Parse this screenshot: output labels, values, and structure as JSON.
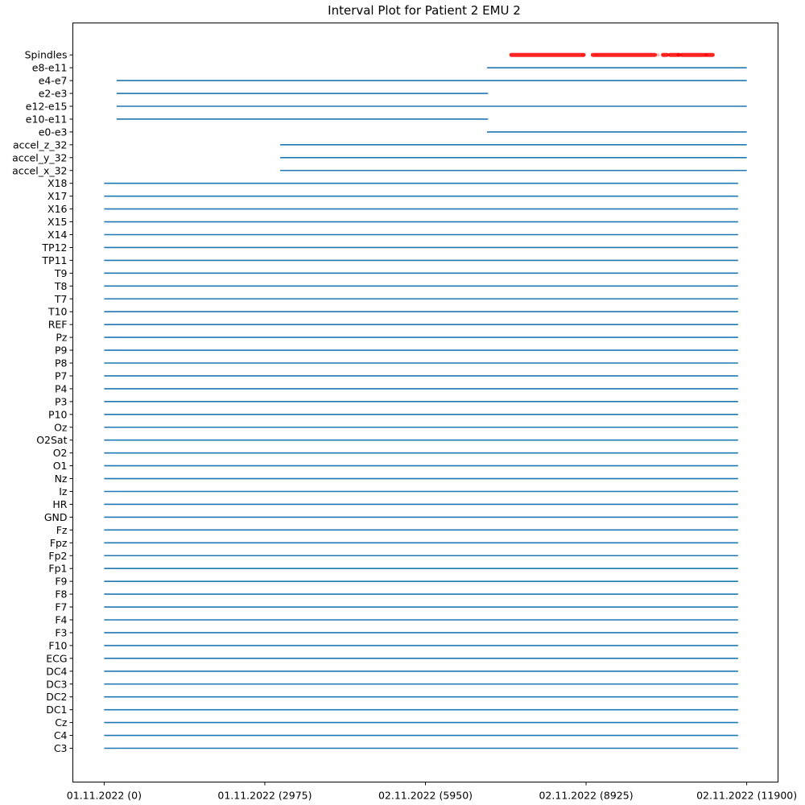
{
  "chart_data": {
    "type": "interval",
    "title": "Interval Plot for Patient 2 EMU 2",
    "xlabel": "",
    "ylabel": "",
    "xlim": [
      -580,
      12480
    ],
    "x_ticks": [
      {
        "value": 0,
        "label": "01.11.2022 (0)"
      },
      {
        "value": 2975,
        "label": "01.11.2022 (2975)"
      },
      {
        "value": 5950,
        "label": "02.11.2022 (5950)"
      },
      {
        "value": 8925,
        "label": "02.11.2022 (8925)"
      },
      {
        "value": 11900,
        "label": "02.11.2022 (11900)"
      }
    ],
    "grid": false,
    "line_color": "#1f77b4",
    "spindle_color": "#ff0000",
    "rows": [
      {
        "label": "C3",
        "start": 0,
        "end": 11740
      },
      {
        "label": "C4",
        "start": 0,
        "end": 11740
      },
      {
        "label": "Cz",
        "start": 0,
        "end": 11740
      },
      {
        "label": "DC1",
        "start": 0,
        "end": 11740
      },
      {
        "label": "DC2",
        "start": 0,
        "end": 11740
      },
      {
        "label": "DC3",
        "start": 0,
        "end": 11740
      },
      {
        "label": "DC4",
        "start": 0,
        "end": 11740
      },
      {
        "label": "ECG",
        "start": 0,
        "end": 11740
      },
      {
        "label": "F10",
        "start": 0,
        "end": 11740
      },
      {
        "label": "F3",
        "start": 0,
        "end": 11740
      },
      {
        "label": "F4",
        "start": 0,
        "end": 11740
      },
      {
        "label": "F7",
        "start": 0,
        "end": 11740
      },
      {
        "label": "F8",
        "start": 0,
        "end": 11740
      },
      {
        "label": "F9",
        "start": 0,
        "end": 11740
      },
      {
        "label": "Fp1",
        "start": 0,
        "end": 11740
      },
      {
        "label": "Fp2",
        "start": 0,
        "end": 11740
      },
      {
        "label": "Fpz",
        "start": 0,
        "end": 11740
      },
      {
        "label": "Fz",
        "start": 0,
        "end": 11740
      },
      {
        "label": "GND",
        "start": 0,
        "end": 11740
      },
      {
        "label": "HR",
        "start": 0,
        "end": 11740
      },
      {
        "label": "Iz",
        "start": 0,
        "end": 11740
      },
      {
        "label": "Nz",
        "start": 0,
        "end": 11740
      },
      {
        "label": "O1",
        "start": 0,
        "end": 11740
      },
      {
        "label": "O2",
        "start": 0,
        "end": 11740
      },
      {
        "label": "O2Sat",
        "start": 0,
        "end": 11740
      },
      {
        "label": "Oz",
        "start": 0,
        "end": 11740
      },
      {
        "label": "P10",
        "start": 0,
        "end": 11740
      },
      {
        "label": "P3",
        "start": 0,
        "end": 11740
      },
      {
        "label": "P4",
        "start": 0,
        "end": 11740
      },
      {
        "label": "P7",
        "start": 0,
        "end": 11740
      },
      {
        "label": "P8",
        "start": 0,
        "end": 11740
      },
      {
        "label": "P9",
        "start": 0,
        "end": 11740
      },
      {
        "label": "Pz",
        "start": 0,
        "end": 11740
      },
      {
        "label": "REF",
        "start": 0,
        "end": 11740
      },
      {
        "label": "T10",
        "start": 0,
        "end": 11740
      },
      {
        "label": "T7",
        "start": 0,
        "end": 11740
      },
      {
        "label": "T8",
        "start": 0,
        "end": 11740
      },
      {
        "label": "T9",
        "start": 0,
        "end": 11740
      },
      {
        "label": "TP11",
        "start": 0,
        "end": 11740
      },
      {
        "label": "TP12",
        "start": 0,
        "end": 11740
      },
      {
        "label": "X14",
        "start": 0,
        "end": 11740
      },
      {
        "label": "X15",
        "start": 0,
        "end": 11740
      },
      {
        "label": "X16",
        "start": 0,
        "end": 11740
      },
      {
        "label": "X17",
        "start": 0,
        "end": 11740
      },
      {
        "label": "X18",
        "start": 0,
        "end": 11740
      },
      {
        "label": "accel_x_32",
        "start": 3260,
        "end": 11900
      },
      {
        "label": "accel_y_32",
        "start": 3260,
        "end": 11900
      },
      {
        "label": "accel_z_32",
        "start": 3260,
        "end": 11900
      },
      {
        "label": "e0-e3",
        "start": 7090,
        "end": 11900
      },
      {
        "label": "e10-e11",
        "start": 230,
        "end": 7110
      },
      {
        "label": "e12-e15",
        "start": 230,
        "end": 11900
      },
      {
        "label": "e2-e3",
        "start": 230,
        "end": 7110
      },
      {
        "label": "e4-e7",
        "start": 230,
        "end": 11900
      },
      {
        "label": "e8-e11",
        "start": 7090,
        "end": 11900
      }
    ],
    "spindles": {
      "label": "Spindles",
      "segments": [
        [
          7540,
          8880
        ],
        [
          9050,
          10200
        ],
        [
          10350,
          10420
        ],
        [
          10480,
          10620
        ],
        [
          10640,
          10650
        ],
        [
          10700,
          11130
        ],
        [
          11160,
          11270
        ]
      ],
      "faint_points": [
        8870,
        9120,
        10260,
        10450,
        10680,
        11150
      ]
    }
  }
}
